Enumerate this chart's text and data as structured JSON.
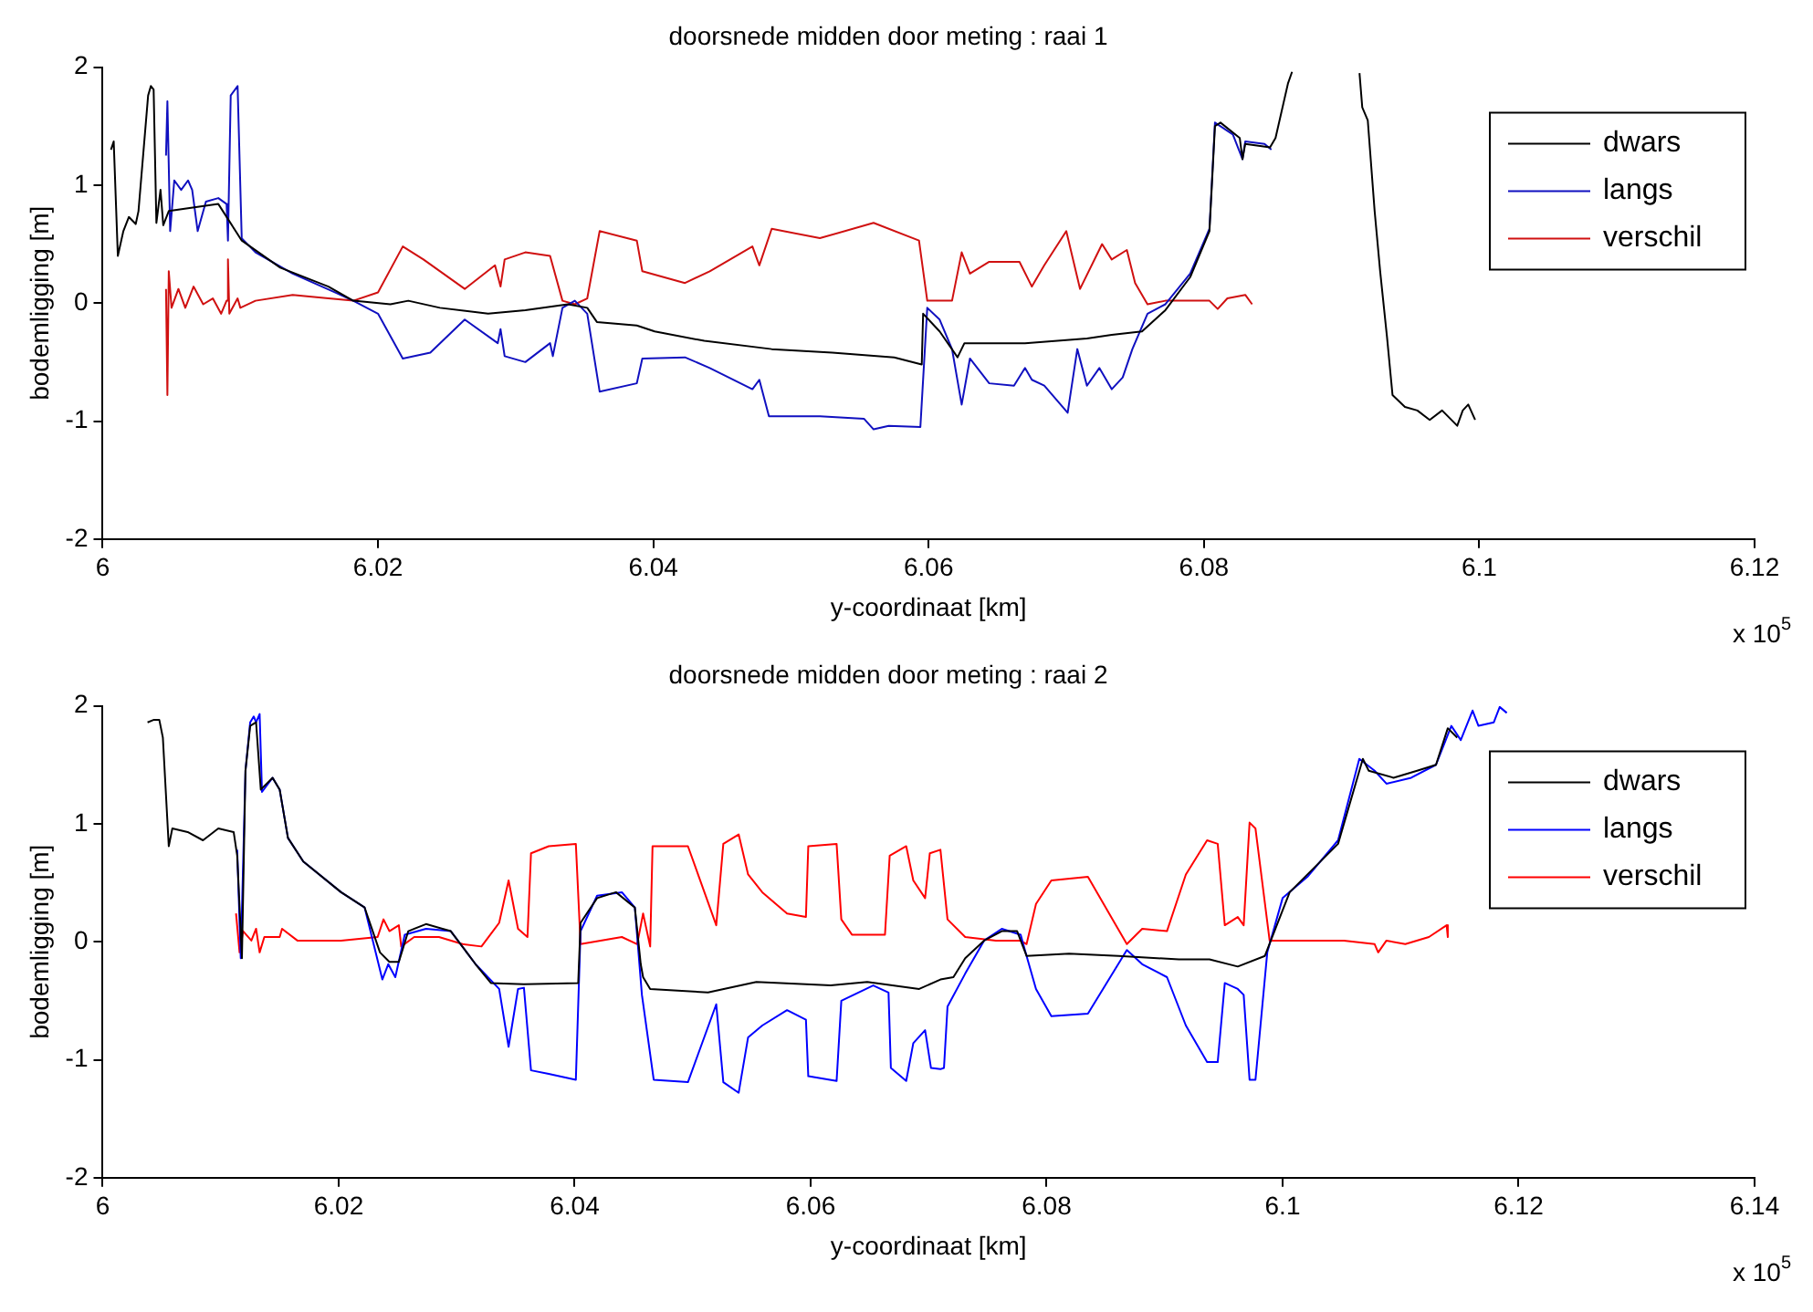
{
  "chart_data": [
    {
      "type": "line",
      "title": "doorsnede midden door meting : raai 1",
      "xlabel": "y-coordinaat [km]",
      "ylabel": "bodemligging [m]",
      "xlim": [
        6,
        6.12
      ],
      "xticks": [
        6,
        6.02,
        6.04,
        6.06,
        6.08,
        6.1,
        6.12
      ],
      "ylim": [
        -2,
        2
      ],
      "yticks": [
        -2,
        -1,
        0,
        1,
        2
      ],
      "legend": "top right",
      "annotations": [
        "x 10$^{5}$"
      ],
      "series": [
        {
          "name": "dwars",
          "color": "#000000",
          "x": [
            6.0006,
            6.0008,
            6.0011,
            6.0015,
            6.0019,
            6.0024,
            6.0026,
            6.0033,
            6.0035,
            6.0037,
            6.0039,
            6.0042,
            6.0044,
            6.0048,
            6.0084,
            6.0101,
            6.0129,
            6.0164,
            6.0182,
            6.0209,
            6.0222,
            6.0245,
            6.028,
            6.0307,
            6.0338,
            6.0352,
            6.0359,
            6.0388,
            6.0401,
            6.0437,
            6.0486,
            6.053,
            6.0575,
            6.0595,
            6.0596,
            6.0608,
            6.0621,
            6.0626,
            6.067,
            6.0715,
            6.0733,
            6.0755,
            6.0772,
            6.079,
            6.0804,
            6.0808,
            6.0812,
            6.0826,
            6.0828,
            6.083,
            6.0848,
            6.0852,
            6.0861,
            6.0864,
            6.0885,
            6.0913,
            6.0915,
            6.0919,
            6.0924,
            6.0928,
            6.0933,
            6.0937,
            6.0946,
            6.0955,
            6.0964,
            6.0973,
            6.0984,
            6.0988,
            6.0992,
            6.0997
          ],
          "values": [
            1.3,
            1.37,
            0.4,
            0.61,
            0.73,
            0.67,
            0.78,
            1.76,
            1.84,
            1.81,
            0.68,
            0.96,
            0.66,
            0.78,
            0.84,
            0.53,
            0.3,
            0.14,
            0.02,
            -0.01,
            0.02,
            -0.04,
            -0.09,
            -0.06,
            -0.01,
            -0.04,
            -0.16,
            -0.19,
            -0.24,
            -0.32,
            -0.39,
            -0.42,
            -0.46,
            -0.52,
            -0.09,
            -0.24,
            -0.46,
            -0.34,
            -0.34,
            -0.3,
            -0.27,
            -0.24,
            -0.06,
            0.22,
            0.61,
            1.5,
            1.53,
            1.4,
            1.22,
            1.35,
            1.32,
            1.4,
            1.86,
            1.96,
            null,
            1.95,
            1.66,
            1.55,
            0.78,
            0.27,
            -0.29,
            -0.78,
            -0.88,
            -0.91,
            -0.99,
            -0.91,
            -1.04,
            -0.91,
            -0.86,
            -0.99
          ]
        },
        {
          "name": "langs",
          "color": "#1010c0",
          "x": [
            6.0046,
            6.0047,
            6.0049,
            6.0052,
            6.0057,
            6.0062,
            6.0065,
            6.0069,
            6.0075,
            6.0084,
            6.009,
            6.0091,
            6.0093,
            6.0098,
            6.0101,
            6.0111,
            6.0138,
            6.0169,
            6.0182,
            6.02,
            6.0218,
            6.0238,
            6.0263,
            6.0287,
            6.0289,
            6.0292,
            6.0307,
            6.0325,
            6.0327,
            6.0334,
            6.0343,
            6.0352,
            6.0361,
            6.0388,
            6.0392,
            6.0423,
            6.0441,
            6.0472,
            6.0477,
            6.0484,
            6.0521,
            6.0553,
            6.056,
            6.0571,
            6.0594,
            6.0599,
            6.0608,
            6.0617,
            6.0624,
            6.063,
            6.0644,
            6.0662,
            6.067,
            6.0675,
            6.0684,
            6.0701,
            6.0708,
            6.0715,
            6.0724,
            6.0733,
            6.0741,
            6.0748,
            6.0759,
            6.0772,
            6.079,
            6.0804,
            6.0808,
            6.0821,
            6.0828,
            6.083,
            6.0844,
            6.0849
          ],
          "values": [
            1.25,
            1.71,
            0.61,
            1.04,
            0.96,
            1.04,
            0.96,
            0.61,
            0.86,
            0.89,
            0.84,
            0.53,
            1.76,
            1.84,
            0.55,
            0.43,
            0.25,
            0.09,
            0.02,
            -0.09,
            -0.47,
            -0.42,
            -0.14,
            -0.34,
            -0.22,
            -0.45,
            -0.5,
            -0.34,
            -0.45,
            -0.04,
            0.02,
            -0.09,
            -0.75,
            -0.68,
            -0.47,
            -0.46,
            -0.55,
            -0.73,
            -0.65,
            -0.96,
            -0.96,
            -0.98,
            -1.07,
            -1.04,
            -1.05,
            -0.04,
            -0.14,
            -0.39,
            -0.86,
            -0.47,
            -0.68,
            -0.7,
            -0.55,
            -0.65,
            -0.7,
            -0.93,
            -0.39,
            -0.7,
            -0.55,
            -0.73,
            -0.63,
            -0.39,
            -0.09,
            -0.01,
            0.25,
            0.63,
            1.53,
            1.43,
            1.22,
            1.37,
            1.35,
            1.3
          ]
        },
        {
          "name": "verschil",
          "color": "#d01010",
          "x": [
            6.0046,
            6.0047,
            6.0048,
            6.005,
            6.0055,
            6.006,
            6.0066,
            6.0073,
            6.008,
            6.0086,
            6.009,
            6.0091,
            6.0092,
            6.0098,
            6.01,
            6.0111,
            6.0138,
            6.0164,
            6.0182,
            6.02,
            6.0218,
            6.0233,
            6.0263,
            6.0285,
            6.0289,
            6.0292,
            6.0307,
            6.0325,
            6.0334,
            6.0343,
            6.0352,
            6.0361,
            6.0388,
            6.0392,
            6.0423,
            6.0441,
            6.0472,
            6.0477,
            6.0486,
            6.0521,
            6.056,
            6.0593,
            6.0599,
            6.0617,
            6.0624,
            6.063,
            6.0644,
            6.0666,
            6.0675,
            6.0684,
            6.07,
            6.071,
            6.0726,
            6.0733,
            6.0744,
            6.075,
            6.0759,
            6.0772,
            6.079,
            6.0804,
            6.081,
            6.0817,
            6.083,
            6.0835
          ],
          "values": [
            0.12,
            -0.78,
            0.27,
            -0.04,
            0.12,
            -0.04,
            0.14,
            -0.01,
            0.04,
            -0.09,
            0.02,
            0.37,
            -0.09,
            0.04,
            -0.04,
            0.02,
            0.07,
            0.04,
            0.02,
            0.09,
            0.48,
            0.37,
            0.12,
            0.32,
            0.14,
            0.37,
            0.43,
            0.4,
            0.02,
            -0.01,
            0.04,
            0.61,
            0.53,
            0.27,
            0.17,
            0.27,
            0.48,
            0.32,
            0.63,
            0.55,
            0.68,
            0.53,
            0.02,
            0.02,
            0.43,
            0.25,
            0.35,
            0.35,
            0.14,
            0.32,
            0.61,
            0.12,
            0.5,
            0.37,
            0.45,
            0.17,
            -0.01,
            0.02,
            0.02,
            0.02,
            -0.05,
            0.04,
            0.07,
            -0.01
          ]
        }
      ]
    },
    {
      "type": "line",
      "title": "doorsnede midden door meting : raai 2",
      "xlabel": "y-coordinaat [km]",
      "ylabel": "bodemligging [m]",
      "xlim": [
        6,
        6.14
      ],
      "xticks": [
        6,
        6.02,
        6.04,
        6.06,
        6.08,
        6.1,
        6.12,
        6.14
      ],
      "ylim": [
        -2,
        2
      ],
      "yticks": [
        -2,
        -1,
        0,
        1,
        2
      ],
      "legend": "top right",
      "annotations": [
        "x 10$^{5}$"
      ],
      "series": [
        {
          "name": "dwars",
          "color": "#000000",
          "x": [
            6.0038,
            6.0043,
            6.0048,
            6.0051,
            6.0056,
            6.0059,
            6.0072,
            6.0085,
            6.0098,
            6.0111,
            6.0114,
            6.0118,
            6.0121,
            6.0125,
            6.013,
            6.0134,
            6.0144,
            6.015,
            6.0157,
            6.017,
            6.0202,
            6.0222,
            6.0235,
            6.0243,
            6.0251,
            6.0259,
            6.0274,
            6.0295,
            6.0316,
            6.0329,
            6.0357,
            6.0403,
            6.0405,
            6.0419,
            6.0435,
            6.0451,
            6.0456,
            6.0458,
            6.0464,
            6.0513,
            6.0554,
            6.0617,
            6.0648,
            6.0692,
            6.071,
            6.0721,
            6.0731,
            6.0747,
            6.0762,
            6.0775,
            6.0783,
            6.0819,
            6.0861,
            6.0912,
            6.0938,
            6.0962,
            6.0985,
            6.099,
            6.1006,
            6.1047,
            6.1068,
            6.1073,
            6.1094,
            6.1114,
            6.113,
            6.114,
            6.1148
          ],
          "values": [
            1.86,
            1.88,
            1.88,
            1.73,
            0.81,
            0.96,
            0.93,
            0.86,
            0.96,
            0.93,
            0.73,
            -0.14,
            1.45,
            1.83,
            1.86,
            1.29,
            1.39,
            1.29,
            0.88,
            0.68,
            0.42,
            0.29,
            -0.09,
            -0.17,
            -0.17,
            0.09,
            0.15,
            0.09,
            -0.19,
            -0.35,
            -0.36,
            -0.35,
            0.16,
            0.37,
            0.42,
            0.29,
            -0.19,
            -0.3,
            -0.4,
            -0.43,
            -0.34,
            -0.37,
            -0.34,
            -0.4,
            -0.32,
            -0.3,
            -0.14,
            0.01,
            0.09,
            0.09,
            -0.12,
            -0.1,
            -0.12,
            -0.15,
            -0.15,
            -0.21,
            -0.12,
            0.01,
            0.42,
            0.83,
            1.55,
            1.45,
            1.39,
            1.45,
            1.5,
            1.81,
            1.73
          ]
        },
        {
          "name": "langs",
          "color": "#0000ff",
          "x": [
            6.0114,
            6.0117,
            6.0121,
            6.0125,
            6.0128,
            6.013,
            6.0133,
            6.0135,
            6.0144,
            6.015,
            6.0157,
            6.017,
            6.0202,
            6.0222,
            6.0237,
            6.0242,
            6.0248,
            6.0256,
            6.0274,
            6.0295,
            6.0316,
            6.0336,
            6.0344,
            6.0352,
            6.0357,
            6.0363,
            6.0378,
            6.0401,
            6.0405,
            6.0419,
            6.044,
            6.0451,
            6.0457,
            6.0467,
            6.0496,
            6.052,
            6.0526,
            6.0539,
            6.0547,
            6.0559,
            6.058,
            6.0596,
            6.0598,
            6.0622,
            6.0626,
            6.0653,
            6.0666,
            6.0668,
            6.0681,
            6.0687,
            6.0697,
            6.0702,
            6.071,
            6.0713,
            6.0716,
            6.0731,
            6.0747,
            6.0762,
            6.0778,
            6.0783,
            6.0791,
            6.0804,
            6.0835,
            6.0868,
            6.0881,
            6.0902,
            6.0918,
            6.0936,
            6.0945,
            6.0951,
            6.0962,
            6.0967,
            6.0972,
            6.0977,
            6.0987,
            6.1,
            6.1021,
            6.1047,
            6.1065,
            6.1078,
            6.1088,
            6.1109,
            6.113,
            6.1143,
            6.1151,
            6.1161,
            6.1166,
            6.1179,
            6.1184,
            6.119
          ],
          "values": [
            0.78,
            -0.14,
            1.45,
            1.86,
            1.91,
            1.86,
            1.93,
            1.27,
            1.39,
            1.29,
            0.88,
            0.68,
            0.42,
            0.29,
            -0.32,
            -0.19,
            -0.3,
            0.06,
            0.11,
            0.09,
            -0.19,
            -0.4,
            -0.89,
            -0.4,
            -0.39,
            -1.09,
            -1.12,
            -1.17,
            0.09,
            0.39,
            0.42,
            0.29,
            -0.45,
            -1.17,
            -1.19,
            -0.53,
            -1.19,
            -1.28,
            -0.81,
            -0.71,
            -0.58,
            -0.66,
            -1.14,
            -1.18,
            -0.5,
            -0.37,
            -0.43,
            -1.07,
            -1.18,
            -0.86,
            -0.75,
            -1.07,
            -1.08,
            -1.07,
            -0.55,
            -0.27,
            0.01,
            0.11,
            0.06,
            -0.12,
            -0.4,
            -0.63,
            -0.61,
            -0.07,
            -0.19,
            -0.3,
            -0.71,
            -1.02,
            -1.02,
            -0.35,
            -0.4,
            -0.45,
            -1.17,
            -1.17,
            -0.09,
            0.37,
            0.55,
            0.86,
            1.55,
            1.45,
            1.34,
            1.39,
            1.5,
            1.83,
            1.71,
            1.96,
            1.83,
            1.86,
            1.99,
            1.94
          ]
        },
        {
          "name": "verschil",
          "color": "#ff0000",
          "x": [
            6.0113,
            6.0116,
            6.0119,
            6.0126,
            6.013,
            6.0133,
            6.0137,
            6.015,
            6.0152,
            6.0165,
            6.0202,
            6.0233,
            6.0238,
            6.0243,
            6.0251,
            6.0253,
            6.0264,
            6.0285,
            6.0305,
            6.0321,
            6.0336,
            6.0344,
            6.0352,
            6.036,
            6.0363,
            6.0378,
            6.0401,
            6.0405,
            6.044,
            6.0453,
            6.0458,
            6.0464,
            6.0466,
            6.0496,
            6.052,
            6.0526,
            6.0539,
            6.0547,
            6.0559,
            6.058,
            6.0596,
            6.0598,
            6.0622,
            6.0626,
            6.0635,
            6.0663,
            6.0667,
            6.0681,
            6.0687,
            6.0697,
            6.0701,
            6.071,
            6.0716,
            6.0731,
            6.0757,
            6.0778,
            6.0783,
            6.0791,
            6.0804,
            6.0835,
            6.0868,
            6.0881,
            6.0902,
            6.0918,
            6.0936,
            6.0945,
            6.0951,
            6.0962,
            6.0967,
            6.0972,
            6.0977,
            6.0989,
            6.1016,
            6.1052,
            6.1078,
            6.1081,
            6.1088,
            6.1104,
            6.1124,
            6.1139,
            6.114
          ],
          "values": [
            0.24,
            -0.09,
            0.09,
            0.01,
            0.11,
            -0.09,
            0.04,
            0.04,
            0.11,
            0.01,
            0.01,
            0.04,
            0.19,
            0.09,
            0.14,
            -0.04,
            0.04,
            0.04,
            -0.02,
            -0.04,
            0.16,
            0.52,
            0.11,
            0.04,
            0.75,
            0.81,
            0.83,
            -0.02,
            0.04,
            -0.02,
            0.24,
            -0.04,
            0.81,
            0.81,
            0.14,
            0.83,
            0.91,
            0.57,
            0.42,
            0.24,
            0.21,
            0.81,
            0.83,
            0.19,
            0.06,
            0.06,
            0.73,
            0.81,
            0.52,
            0.37,
            0.75,
            0.78,
            0.19,
            0.04,
            0.01,
            0.01,
            -0.02,
            0.32,
            0.52,
            0.55,
            -0.02,
            0.11,
            0.09,
            0.57,
            0.86,
            0.83,
            0.14,
            0.21,
            0.14,
            1.01,
            0.96,
            0.01,
            0.01,
            0.01,
            -0.02,
            -0.09,
            0.01,
            -0.02,
            0.04,
            0.14,
            0.04
          ]
        }
      ]
    }
  ]
}
